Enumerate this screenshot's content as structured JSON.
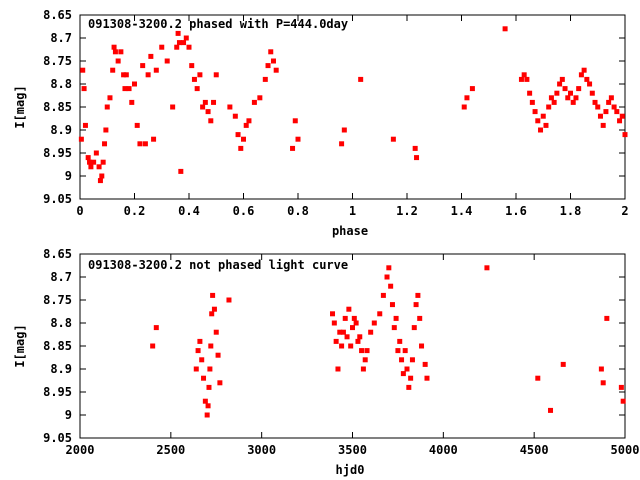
{
  "chart_data": [
    {
      "type": "scatter",
      "title": "091308-3200.2 phased with P=444.0day",
      "xlabel": "phase",
      "ylabel": "I[mag]",
      "xlim": [
        0,
        2
      ],
      "ylim": [
        9.05,
        8.65
      ],
      "y_inverted": true,
      "xticks": [
        "0",
        "0.2",
        "0.4",
        "0.6",
        "0.8",
        "1",
        "1.2",
        "1.4",
        "1.6",
        "1.8",
        "2"
      ],
      "yticks": [
        "8.65",
        "8.7",
        "8.75",
        "8.8",
        "8.85",
        "8.9",
        "8.95",
        "9",
        "9.05"
      ],
      "color": "#ff0000",
      "series": [
        {
          "x": [
            0.005,
            0.01,
            0.015,
            0.02,
            0.03,
            0.035,
            0.04,
            0.05,
            0.06,
            0.07,
            0.075,
            0.08,
            0.085,
            0.09,
            0.095,
            0.1,
            0.11,
            0.12,
            0.125,
            0.13,
            0.14,
            0.15,
            0.16,
            0.165,
            0.17,
            0.18,
            0.19,
            0.2,
            0.21,
            0.22,
            0.23,
            0.24,
            0.25,
            0.26,
            0.27,
            0.28,
            0.3,
            0.32,
            0.34,
            0.355,
            0.36,
            0.365,
            0.37,
            0.38,
            0.39,
            0.4,
            0.41,
            0.42,
            0.43,
            0.44,
            0.45,
            0.46,
            0.47,
            0.48,
            0.49,
            0.5,
            0.55,
            0.57,
            0.58,
            0.59,
            0.6,
            0.61,
            0.62,
            0.64,
            0.66,
            0.68,
            0.69,
            0.7,
            0.71,
            0.72,
            0.78,
            0.79,
            0.8,
            0.96,
            0.97,
            1.03,
            1.15,
            1.23,
            1.235,
            1.41,
            1.42,
            1.44,
            1.56,
            1.62,
            1.63,
            1.64,
            1.65,
            1.66,
            1.67,
            1.68,
            1.69,
            1.7,
            1.71,
            1.72,
            1.73,
            1.74,
            1.75,
            1.76,
            1.77,
            1.78,
            1.79,
            1.8,
            1.81,
            1.82,
            1.83,
            1.84,
            1.85,
            1.86,
            1.87,
            1.88,
            1.89,
            1.9,
            1.91,
            1.92,
            1.93,
            1.94,
            1.95,
            1.96,
            1.97,
            1.98,
            1.99,
            2.0
          ],
          "y": [
            8.92,
            8.77,
            8.81,
            8.89,
            8.96,
            8.97,
            8.98,
            8.97,
            8.95,
            8.98,
            9.01,
            9.0,
            8.97,
            8.93,
            8.9,
            8.85,
            8.83,
            8.77,
            8.72,
            8.73,
            8.75,
            8.73,
            8.78,
            8.81,
            8.78,
            8.81,
            8.84,
            8.8,
            8.89,
            8.93,
            8.76,
            8.93,
            8.78,
            8.74,
            8.92,
            8.77,
            8.72,
            8.75,
            8.85,
            8.72,
            8.69,
            8.71,
            8.99,
            8.71,
            8.7,
            8.72,
            8.76,
            8.79,
            8.81,
            8.78,
            8.85,
            8.84,
            8.86,
            8.88,
            8.84,
            8.78,
            8.85,
            8.87,
            8.91,
            8.94,
            8.92,
            8.89,
            8.88,
            8.84,
            8.83,
            8.79,
            8.76,
            8.73,
            8.75,
            8.77,
            8.94,
            8.88,
            8.92,
            8.93,
            8.9,
            8.79,
            8.92,
            8.94,
            8.96,
            8.85,
            8.83,
            8.81,
            8.68,
            8.79,
            8.78,
            8.79,
            8.82,
            8.84,
            8.86,
            8.88,
            8.9,
            8.87,
            8.89,
            8.85,
            8.83,
            8.84,
            8.82,
            8.8,
            8.79,
            8.81,
            8.83,
            8.82,
            8.84,
            8.83,
            8.81,
            8.78,
            8.77,
            8.79,
            8.8,
            8.82,
            8.84,
            8.85,
            8.87,
            8.89,
            8.86,
            8.84,
            8.83,
            8.85,
            8.86,
            8.88,
            8.87,
            8.91
          ]
        }
      ]
    },
    {
      "type": "scatter",
      "title": "091308-3200.2 not phased light curve",
      "xlabel": "hjd0",
      "ylabel": "I[mag]",
      "xlim": [
        2000,
        5000
      ],
      "ylim": [
        9.05,
        8.65
      ],
      "y_inverted": true,
      "xticks": [
        "2000",
        "2500",
        "3000",
        "3500",
        "4000",
        "4500",
        "5000"
      ],
      "yticks": [
        "8.65",
        "8.7",
        "8.75",
        "8.8",
        "8.85",
        "8.9",
        "8.95",
        "9",
        "9.05"
      ],
      "color": "#ff0000",
      "series": [
        {
          "x": [
            2400,
            2420,
            2640,
            2650,
            2660,
            2670,
            2680,
            2690,
            2700,
            2705,
            2710,
            2715,
            2720,
            2725,
            2730,
            2740,
            2750,
            2760,
            2770,
            2820,
            3390,
            3400,
            3410,
            3420,
            3430,
            3440,
            3450,
            3460,
            3470,
            3480,
            3490,
            3500,
            3510,
            3520,
            3530,
            3540,
            3550,
            3560,
            3570,
            3580,
            3600,
            3620,
            3650,
            3670,
            3690,
            3700,
            3710,
            3720,
            3730,
            3740,
            3750,
            3760,
            3770,
            3780,
            3790,
            3800,
            3810,
            3820,
            3830,
            3840,
            3850,
            3860,
            3870,
            3880,
            3900,
            3910,
            4240,
            4520,
            4590,
            4660,
            4870,
            4880,
            4900,
            4980,
            4990
          ],
          "y": [
            8.85,
            8.81,
            8.9,
            8.86,
            8.84,
            8.88,
            8.92,
            8.97,
            9.0,
            8.98,
            8.94,
            8.9,
            8.85,
            8.78,
            8.74,
            8.77,
            8.82,
            8.87,
            8.93,
            8.75,
            8.78,
            8.8,
            8.84,
            8.9,
            8.82,
            8.85,
            8.82,
            8.79,
            8.83,
            8.77,
            8.85,
            8.81,
            8.79,
            8.8,
            8.84,
            8.83,
            8.86,
            8.9,
            8.88,
            8.86,
            8.82,
            8.8,
            8.78,
            8.74,
            8.7,
            8.68,
            8.72,
            8.76,
            8.81,
            8.79,
            8.86,
            8.84,
            8.88,
            8.91,
            8.86,
            8.9,
            8.94,
            8.92,
            8.88,
            8.81,
            8.76,
            8.74,
            8.79,
            8.85,
            8.89,
            8.92,
            8.68,
            8.92,
            8.99,
            8.89,
            8.9,
            8.93,
            8.79,
            8.94,
            8.97
          ]
        }
      ]
    }
  ]
}
